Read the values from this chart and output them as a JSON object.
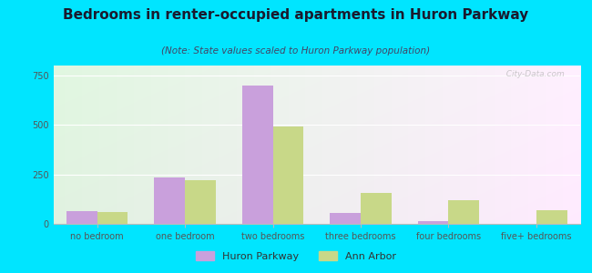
{
  "title": "Bedrooms in renter-occupied apartments in Huron Parkway",
  "subtitle": "(Note: State values scaled to Huron Parkway population)",
  "categories": [
    "no bedroom",
    "one bedroom",
    "two bedrooms",
    "three bedrooms",
    "four bedrooms",
    "five+ bedrooms"
  ],
  "huron_parkway": [
    65,
    235,
    700,
    55,
    15,
    0
  ],
  "ann_arbor": [
    60,
    220,
    490,
    155,
    120,
    70
  ],
  "huron_color": "#c9a0dc",
  "ann_arbor_color": "#c8d888",
  "background_outer": "#00e5ff",
  "ylim": [
    0,
    800
  ],
  "yticks": [
    0,
    250,
    500,
    750
  ],
  "bar_width": 0.35,
  "title_fontsize": 11,
  "subtitle_fontsize": 7.5,
  "tick_fontsize": 7,
  "legend_fontsize": 8
}
